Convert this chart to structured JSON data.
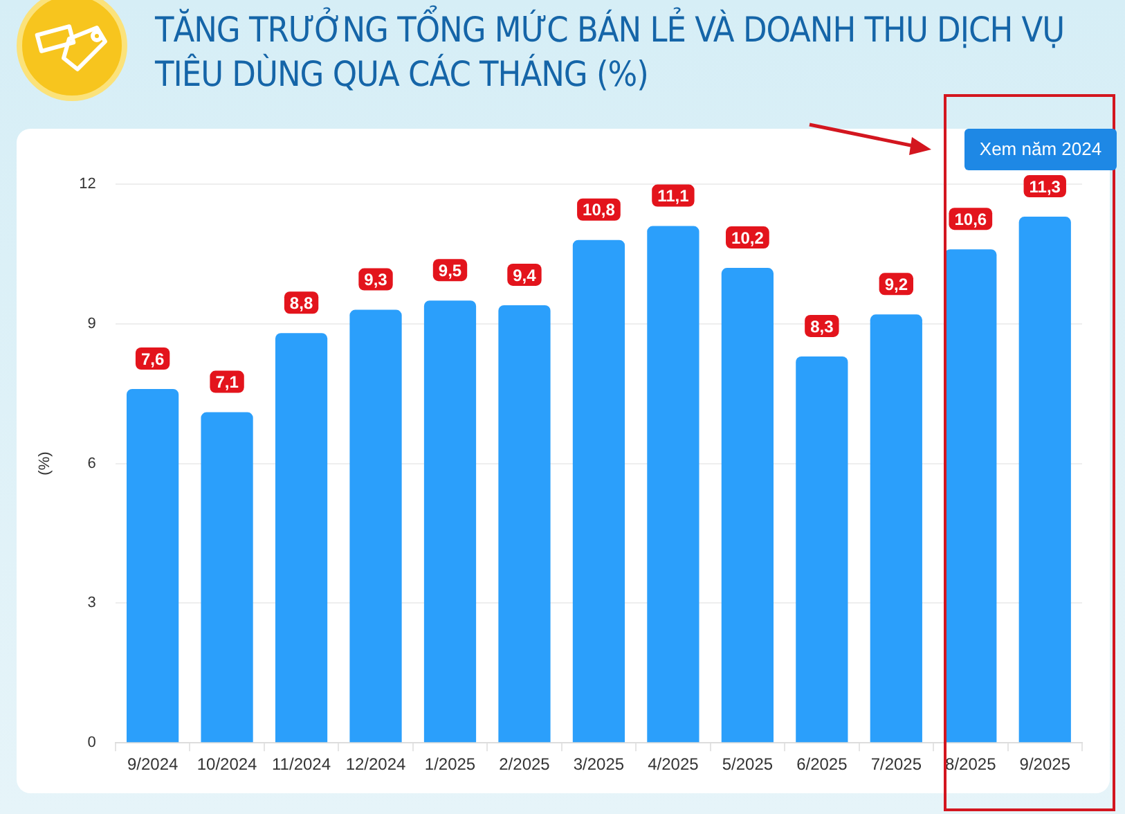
{
  "chart_data": {
    "type": "bar",
    "title": "TĂNG TRƯỞNG TỔNG MỨC BÁN LẺ VÀ DOANH THU DỊCH VỤ TIÊU DÙNG QUA CÁC THÁNG (%)",
    "ylabel": "(%)",
    "categories": [
      "9/2024",
      "10/2024",
      "11/2024",
      "12/2024",
      "1/2025",
      "2/2025",
      "3/2025",
      "4/2025",
      "5/2025",
      "6/2025",
      "7/2025",
      "8/2025",
      "9/2025"
    ],
    "values": [
      7.6,
      7.1,
      8.8,
      9.3,
      9.5,
      9.4,
      10.8,
      11.1,
      10.2,
      8.3,
      9.2,
      10.6,
      11.3
    ],
    "value_labels": [
      "7,6",
      "7,1",
      "8,8",
      "9,3",
      "9,5",
      "9,4",
      "10,8",
      "11,1",
      "10,2",
      "8,3",
      "9,2",
      "10,6",
      "11,3"
    ],
    "color": "#2b9ffb",
    "ylim": [
      0,
      12
    ],
    "yticks": [
      0,
      3,
      6,
      9,
      12
    ],
    "grid": "y",
    "legend": false,
    "annotations": [
      "Xem năm 2024"
    ]
  }
}
